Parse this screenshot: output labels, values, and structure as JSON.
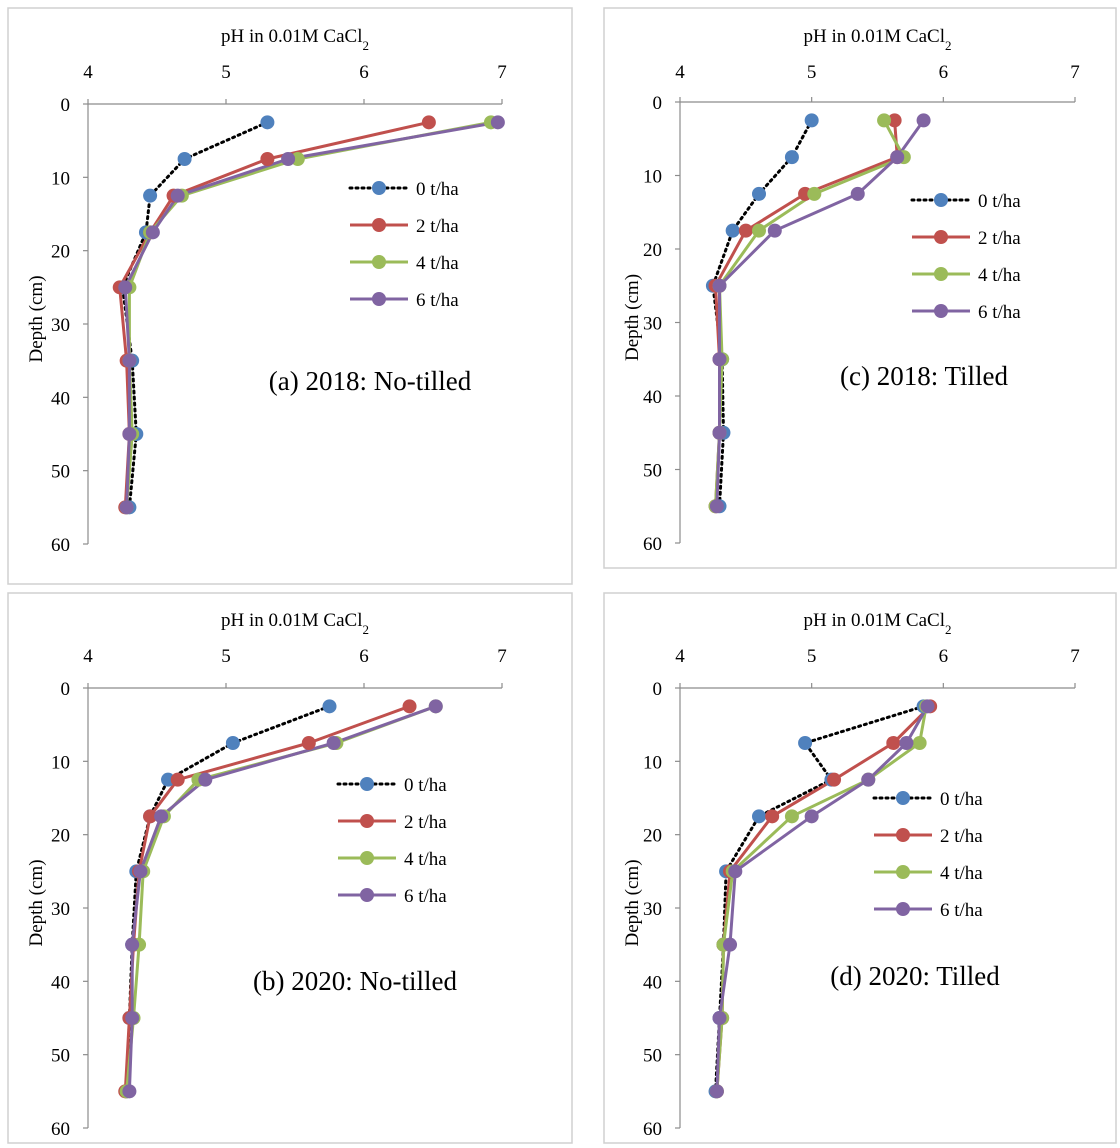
{
  "colors": {
    "0 t/ha": "#000000",
    "2 t/ha": "#c0504d",
    "4 t/ha": "#9bbb59",
    "6 t/ha": "#8064a2",
    "marker_0": "#4f81bd"
  },
  "chart_data": [
    {
      "type": "line",
      "title_main": "pH in 0.01M CaCl",
      "title_sub": "2",
      "xlabel": "",
      "ylabel": "Depth (cm)",
      "annotation": "(a) 2018: No-tilled",
      "xlim": [
        4,
        7
      ],
      "ylim": [
        0,
        60
      ],
      "xticks": [
        "4",
        "5",
        "6",
        "7"
      ],
      "yticks": [
        "0",
        "10",
        "20",
        "30",
        "40",
        "50",
        "60"
      ],
      "x_axis_position": "top",
      "y_inverted": true,
      "grid": false,
      "legend": "center-right",
      "depths": [
        2.5,
        7.5,
        12.5,
        17.5,
        25,
        35,
        45,
        55
      ],
      "series": [
        {
          "name": "0 t/ha",
          "style": "dotted",
          "values": [
            5.3,
            4.7,
            4.45,
            4.42,
            4.25,
            4.32,
            4.35,
            4.3
          ]
        },
        {
          "name": "2 t/ha",
          "style": "solid",
          "values": [
            6.47,
            5.3,
            4.62,
            4.45,
            4.23,
            4.28,
            4.3,
            4.27
          ]
        },
        {
          "name": "4 t/ha",
          "style": "solid",
          "values": [
            6.92,
            5.52,
            4.68,
            4.45,
            4.3,
            4.3,
            4.32,
            4.28
          ]
        },
        {
          "name": "6 t/ha",
          "style": "solid",
          "values": [
            6.97,
            5.45,
            4.65,
            4.47,
            4.27,
            4.3,
            4.3,
            4.28
          ]
        }
      ]
    },
    {
      "type": "line",
      "title_main": "pH in 0.01M CaCl",
      "title_sub": "2",
      "xlabel": "",
      "ylabel": "Depth (cm)",
      "annotation": "(c) 2018: Tilled",
      "xlim": [
        4,
        7
      ],
      "ylim": [
        0,
        60
      ],
      "xticks": [
        "4",
        "5",
        "6",
        "7"
      ],
      "yticks": [
        "0",
        "10",
        "20",
        "30",
        "40",
        "50",
        "60"
      ],
      "x_axis_position": "top",
      "y_inverted": true,
      "grid": false,
      "legend": "center-right",
      "depths": [
        2.5,
        7.5,
        12.5,
        17.5,
        25,
        35,
        45,
        55
      ],
      "series": [
        {
          "name": "0 t/ha",
          "style": "dotted",
          "values": [
            5.0,
            4.85,
            4.6,
            4.4,
            4.25,
            4.32,
            4.33,
            4.3
          ]
        },
        {
          "name": "2 t/ha",
          "style": "solid",
          "values": [
            5.63,
            5.65,
            4.95,
            4.5,
            4.27,
            4.3,
            4.3,
            4.27
          ]
        },
        {
          "name": "4 t/ha",
          "style": "solid",
          "values": [
            5.55,
            5.7,
            5.02,
            4.6,
            4.3,
            4.32,
            4.3,
            4.27
          ]
        },
        {
          "name": "6 t/ha",
          "style": "solid",
          "values": [
            5.85,
            5.65,
            5.35,
            4.72,
            4.3,
            4.3,
            4.3,
            4.28
          ]
        }
      ]
    },
    {
      "type": "line",
      "title_main": "pH in 0.01M CaCl",
      "title_sub": "2",
      "xlabel": "",
      "ylabel": "Depth (cm)",
      "annotation": "(b) 2020: No-tilled",
      "xlim": [
        4,
        7
      ],
      "ylim": [
        0,
        60
      ],
      "xticks": [
        "4",
        "5",
        "6",
        "7"
      ],
      "yticks": [
        "0",
        "10",
        "20",
        "30",
        "40",
        "50",
        "60"
      ],
      "x_axis_position": "top",
      "y_inverted": true,
      "grid": false,
      "legend": "center-right",
      "depths": [
        2.5,
        7.5,
        12.5,
        17.5,
        25,
        35,
        45,
        55
      ],
      "series": [
        {
          "name": "0 t/ha",
          "style": "dotted",
          "values": [
            5.75,
            5.05,
            4.58,
            4.45,
            4.35,
            4.32,
            4.3,
            4.28
          ]
        },
        {
          "name": "2 t/ha",
          "style": "solid",
          "values": [
            6.33,
            5.6,
            4.65,
            4.45,
            4.37,
            4.33,
            4.3,
            4.27
          ]
        },
        {
          "name": "4 t/ha",
          "style": "solid",
          "values": [
            6.52,
            5.8,
            4.8,
            4.55,
            4.4,
            4.37,
            4.33,
            4.28
          ]
        },
        {
          "name": "6 t/ha",
          "style": "solid",
          "values": [
            6.52,
            5.78,
            4.85,
            4.53,
            4.38,
            4.32,
            4.32,
            4.3
          ]
        }
      ]
    },
    {
      "type": "line",
      "title_main": "pH in 0.01M CaCl",
      "title_sub": "2",
      "xlabel": "",
      "ylabel": "Depth (cm)",
      "annotation": "(d) 2020: Tilled",
      "xlim": [
        4,
        7
      ],
      "ylim": [
        0,
        60
      ],
      "xticks": [
        "4",
        "5",
        "6",
        "7"
      ],
      "yticks": [
        "0",
        "10",
        "20",
        "30",
        "40",
        "50",
        "60"
      ],
      "x_axis_position": "top",
      "y_inverted": true,
      "grid": false,
      "legend": "center-right",
      "depths": [
        2.5,
        7.5,
        12.5,
        17.5,
        25,
        35,
        45,
        55
      ],
      "series": [
        {
          "name": "0 t/ha",
          "style": "dotted",
          "values": [
            5.85,
            4.95,
            5.15,
            4.6,
            4.35,
            4.33,
            4.3,
            4.27
          ]
        },
        {
          "name": "2 t/ha",
          "style": "solid",
          "values": [
            5.9,
            5.62,
            5.17,
            4.7,
            4.38,
            4.33,
            4.32,
            4.28
          ]
        },
        {
          "name": "4 t/ha",
          "style": "solid",
          "values": [
            5.87,
            5.82,
            5.43,
            4.85,
            4.4,
            4.33,
            4.32,
            4.28
          ]
        },
        {
          "name": "6 t/ha",
          "style": "solid",
          "values": [
            5.88,
            5.72,
            5.43,
            5.0,
            4.42,
            4.38,
            4.3,
            4.28
          ]
        }
      ]
    }
  ]
}
